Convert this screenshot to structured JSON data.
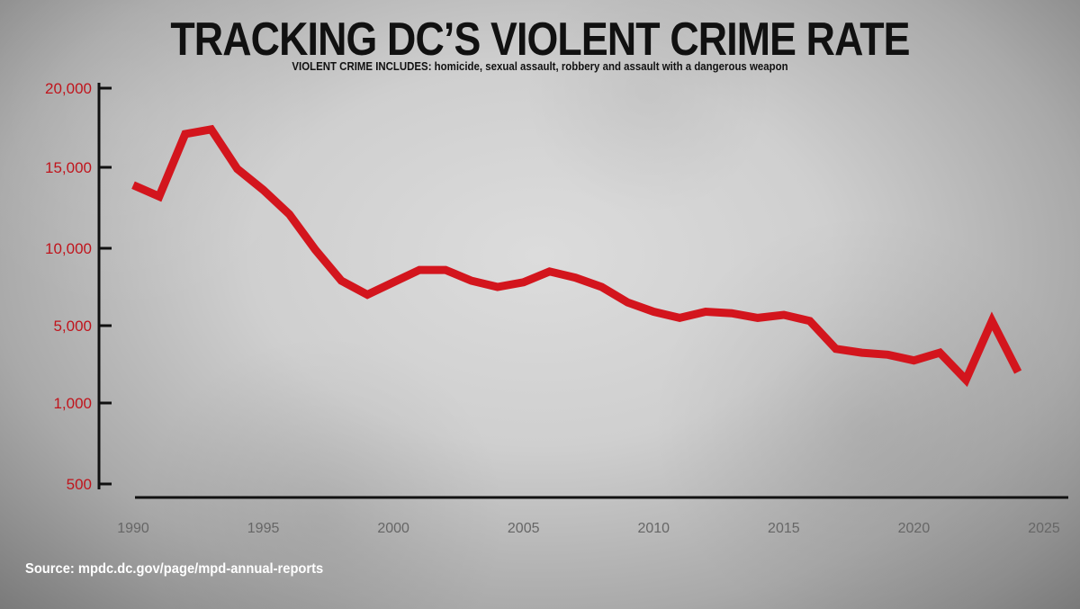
{
  "title": "TRACKING DC’S VIOLENT CRIME RATE",
  "subtitle": "VIOLENT CRIME INCLUDES: homicide, sexual assault, robbery and assault with a dangerous weapon",
  "source": "Source: mpdc.dc.gov/page/mpd-annual-reports",
  "colors": {
    "line": "#d3151d",
    "ytick": "#c0141c",
    "axis": "#111111"
  },
  "chart_data": {
    "type": "line",
    "title": "TRACKING DC’S VIOLENT CRIME RATE",
    "xlabel": "",
    "ylabel": "",
    "y_ticks": [
      {
        "label": "20,000",
        "value": 20000
      },
      {
        "label": "15,000",
        "value": 15000
      },
      {
        "label": "10,000",
        "value": 10000
      },
      {
        "label": "5,000",
        "value": 5000
      },
      {
        "label": "1,000",
        "value": 1000
      },
      {
        "label": "500",
        "value": 500
      }
    ],
    "x_ticks": [
      1990,
      1995,
      2000,
      2005,
      2010,
      2015,
      2020,
      2025
    ],
    "xlim": [
      1990,
      2025
    ],
    "grid": false,
    "series": [
      {
        "x": [
          1990,
          1991,
          1992,
          1993,
          1994,
          1995,
          1996,
          1997,
          1998,
          1999,
          2000,
          2001,
          2002,
          2003,
          2004,
          2005,
          2006,
          2007,
          2008,
          2009,
          2010,
          2011,
          2012,
          2013,
          2014,
          2015,
          2016,
          2017,
          2018,
          2019,
          2020,
          2021,
          2022,
          2023,
          2024
        ],
        "values": [
          13900,
          13200,
          17100,
          17400,
          14900,
          13600,
          12100,
          9900,
          7900,
          7000,
          7800,
          8600,
          8600,
          7900,
          7500,
          7800,
          8500,
          8100,
          7500,
          6500,
          5900,
          5500,
          5900,
          5800,
          5500,
          5700,
          5300,
          3800,
          3600,
          3500,
          3200,
          3600,
          2200,
          5300,
          2600
        ]
      }
    ]
  }
}
